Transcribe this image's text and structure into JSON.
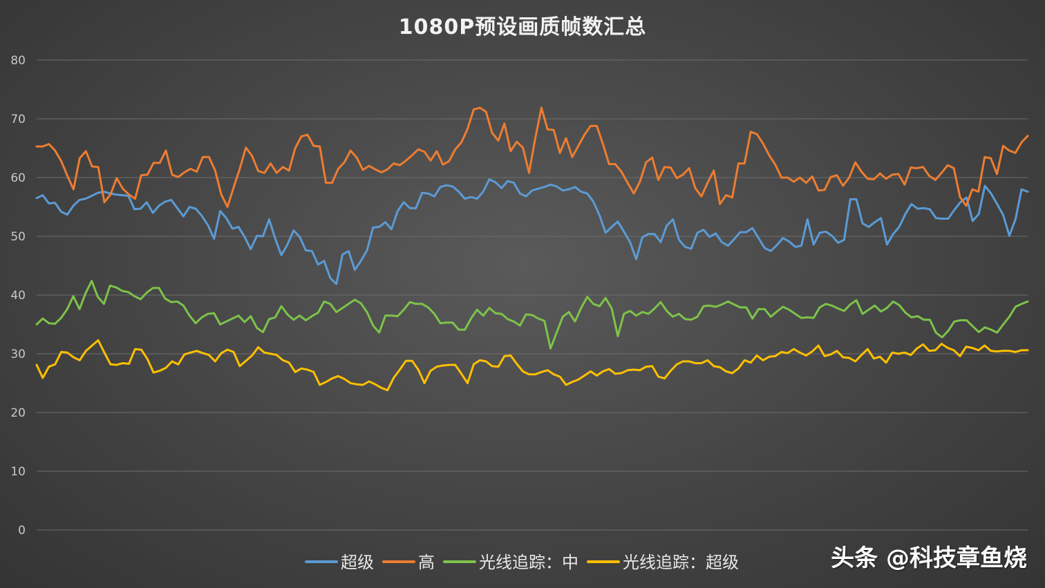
{
  "watermark": "头条 @科技章鱼烧",
  "chart_data": {
    "type": "line",
    "title": "1080P预设画质帧数汇总",
    "ylim": [
      0,
      80
    ],
    "yticks": [
      0,
      10,
      20,
      30,
      40,
      50,
      60,
      70,
      80
    ],
    "grid": true,
    "legend_position": "bottom",
    "series": [
      {
        "name": "超级",
        "color": "#5b9bd5",
        "values": [
          56.5,
          57.0,
          55.6,
          55.7,
          54.2,
          53.7,
          55.2,
          56.2,
          56.4,
          56.9,
          57.4,
          57.6,
          57.3,
          57.1,
          57.0,
          56.9,
          54.6,
          54.7,
          55.8,
          54.0,
          55.2,
          55.9,
          56.2,
          54.8,
          53.4,
          55.0,
          54.7,
          53.5,
          51.9,
          49.6,
          54.3,
          53.1,
          51.3,
          51.6,
          49.9,
          47.8,
          50.1,
          50.0,
          52.9,
          49.6,
          46.8,
          48.6,
          51.0,
          49.9,
          47.6,
          47.5,
          45.2,
          45.8,
          42.9,
          41.9,
          46.9,
          47.5,
          44.3,
          45.8,
          47.6,
          51.5,
          51.6,
          52.4,
          51.2,
          54.3,
          55.8,
          54.8,
          54.8,
          57.4,
          57.3,
          56.8,
          58.4,
          58.7,
          58.5,
          57.6,
          56.4,
          56.7,
          56.4,
          57.6,
          59.7,
          59.2,
          58.2,
          59.4,
          59.1,
          57.3,
          56.8,
          57.8,
          58.1,
          58.4,
          58.8,
          58.5,
          57.8,
          58.0,
          58.4,
          57.6,
          57.3,
          55.9,
          53.6,
          50.6,
          51.6,
          52.5,
          50.8,
          49.0,
          46.1,
          49.8,
          50.4,
          50.4,
          49.0,
          51.8,
          52.9,
          49.4,
          48.2,
          47.9,
          50.6,
          51.1,
          49.9,
          50.5,
          49.0,
          48.4,
          49.5,
          50.7,
          50.7,
          51.4,
          49.7,
          48.0,
          47.5,
          48.5,
          49.7,
          49.1,
          48.2,
          48.4,
          52.9,
          48.6,
          50.6,
          50.8,
          50.1,
          48.9,
          49.4,
          56.3,
          56.3,
          52.2,
          51.6,
          52.4,
          53.1,
          48.6,
          50.4,
          51.6,
          53.8,
          55.5,
          54.7,
          54.8,
          54.6,
          53.1,
          53.0,
          53.0,
          54.5,
          55.8,
          56.6,
          52.6,
          53.8,
          58.6,
          57.3,
          55.5,
          53.6,
          50.1,
          52.9,
          58.0,
          57.6
        ]
      },
      {
        "name": "高",
        "color": "#ed7d31",
        "values": [
          65.3,
          65.3,
          65.7,
          64.6,
          62.8,
          60.3,
          58.0,
          63.3,
          64.5,
          61.9,
          61.8,
          55.8,
          57.1,
          59.9,
          58.1,
          57.1,
          56.4,
          60.4,
          60.5,
          62.5,
          62.5,
          64.6,
          60.5,
          60.1,
          60.9,
          61.5,
          61.0,
          63.5,
          63.5,
          61.2,
          57.1,
          55.0,
          58.3,
          61.5,
          65.1,
          63.7,
          61.1,
          60.8,
          62.4,
          60.8,
          61.8,
          61.2,
          65.0,
          67.0,
          67.3,
          65.4,
          65.3,
          59.1,
          59.1,
          61.5,
          62.6,
          64.6,
          63.4,
          61.3,
          62.0,
          61.4,
          60.9,
          61.4,
          62.4,
          62.1,
          62.9,
          63.8,
          64.8,
          64.4,
          62.9,
          64.5,
          62.2,
          62.8,
          64.8,
          66.0,
          68.3,
          71.6,
          71.9,
          71.2,
          67.6,
          66.3,
          69.2,
          64.5,
          66.1,
          65.1,
          60.8,
          66.7,
          71.9,
          68.2,
          68.1,
          64.2,
          66.7,
          63.5,
          65.4,
          67.3,
          68.8,
          68.8,
          65.7,
          62.3,
          62.3,
          61.0,
          59.1,
          57.3,
          59.3,
          62.6,
          63.4,
          59.6,
          61.8,
          61.7,
          59.9,
          60.5,
          61.6,
          58.2,
          56.8,
          59.1,
          61.2,
          55.5,
          57.0,
          56.6,
          62.4,
          62.4,
          67.8,
          67.4,
          65.8,
          63.8,
          62.2,
          60.0,
          60.0,
          59.3,
          60.0,
          59.1,
          60.2,
          57.8,
          57.9,
          60.1,
          60.4,
          58.6,
          60.0,
          62.6,
          61.0,
          59.8,
          59.7,
          60.7,
          59.8,
          60.5,
          60.6,
          58.8,
          61.7,
          61.6,
          61.8,
          60.3,
          59.6,
          60.8,
          62.1,
          61.6,
          56.7,
          55.2,
          58.0,
          57.6,
          63.5,
          63.3,
          60.6,
          65.4,
          64.6,
          64.2,
          66.0,
          67.1
        ]
      },
      {
        "name": "光线追踪：中",
        "color": "#7dc34a",
        "values": [
          35.0,
          36.0,
          35.2,
          35.1,
          36.1,
          37.6,
          39.8,
          37.6,
          40.3,
          42.4,
          39.7,
          38.5,
          41.6,
          41.3,
          40.7,
          40.5,
          39.8,
          39.3,
          40.4,
          41.2,
          41.2,
          39.4,
          38.8,
          38.9,
          38.2,
          36.5,
          35.2,
          36.2,
          36.8,
          36.9,
          35.0,
          35.5,
          36.0,
          36.5,
          35.4,
          36.4,
          34.4,
          33.7,
          35.9,
          36.2,
          38.1,
          36.7,
          35.8,
          36.5,
          35.7,
          36.4,
          37.0,
          38.9,
          38.5,
          37.1,
          37.8,
          38.5,
          39.2,
          38.6,
          37.1,
          34.8,
          33.6,
          36.5,
          36.5,
          36.4,
          37.5,
          38.8,
          38.5,
          38.5,
          37.9,
          36.8,
          35.2,
          35.3,
          35.3,
          34.1,
          34.1,
          36.0,
          37.5,
          36.5,
          37.8,
          36.9,
          36.8,
          35.9,
          35.5,
          34.8,
          36.7,
          36.6,
          36.0,
          35.6,
          30.9,
          33.6,
          36.3,
          37.1,
          35.5,
          37.8,
          39.7,
          38.5,
          38.1,
          39.5,
          37.7,
          33.0,
          36.8,
          37.3,
          36.5,
          37.1,
          36.8,
          37.7,
          38.8,
          37.3,
          36.3,
          36.8,
          35.9,
          35.8,
          36.3,
          38.1,
          38.2,
          38.0,
          38.4,
          38.9,
          38.4,
          37.9,
          37.9,
          36.0,
          37.6,
          37.6,
          36.3,
          37.2,
          38.0,
          37.5,
          36.8,
          36.1,
          36.2,
          36.1,
          37.9,
          38.5,
          38.2,
          37.7,
          37.3,
          38.4,
          39.1,
          36.8,
          37.5,
          38.2,
          37.2,
          37.8,
          38.9,
          38.3,
          37.0,
          36.2,
          36.4,
          35.8,
          35.8,
          33.6,
          32.8,
          33.9,
          35.5,
          35.7,
          35.7,
          34.7,
          33.7,
          34.5,
          34.1,
          33.6,
          35.0,
          36.3,
          38.0,
          38.5,
          38.9
        ]
      },
      {
        "name": "光线追踪：超级",
        "color": "#ffc000",
        "values": [
          28.1,
          25.9,
          27.8,
          28.2,
          30.3,
          30.2,
          29.4,
          28.9,
          30.5,
          31.4,
          32.3,
          30.2,
          28.2,
          28.1,
          28.4,
          28.3,
          30.8,
          30.7,
          29.1,
          26.8,
          27.1,
          27.6,
          28.7,
          28.2,
          29.9,
          30.2,
          30.5,
          30.1,
          29.8,
          28.7,
          30.1,
          30.7,
          30.3,
          27.9,
          28.8,
          29.7,
          31.1,
          30.2,
          30.0,
          29.8,
          28.9,
          28.5,
          26.9,
          27.5,
          27.3,
          26.9,
          24.7,
          25.2,
          25.8,
          26.2,
          25.7,
          25.0,
          24.8,
          24.7,
          25.3,
          24.8,
          24.2,
          23.8,
          25.9,
          27.3,
          28.8,
          28.8,
          27.3,
          25.0,
          27.1,
          27.8,
          28.0,
          28.1,
          28.1,
          26.6,
          25.0,
          28.2,
          28.9,
          28.7,
          27.9,
          27.8,
          29.6,
          29.7,
          28.3,
          27.0,
          26.5,
          26.5,
          26.9,
          27.2,
          26.5,
          26.1,
          24.7,
          25.2,
          25.6,
          26.3,
          27.0,
          26.3,
          27.0,
          27.4,
          26.6,
          26.7,
          27.2,
          27.3,
          27.2,
          27.8,
          27.9,
          26.1,
          25.8,
          27.1,
          28.2,
          28.7,
          28.7,
          28.4,
          28.4,
          28.9,
          27.9,
          27.7,
          27.0,
          26.7,
          27.5,
          28.9,
          28.5,
          29.7,
          28.9,
          29.5,
          29.6,
          30.3,
          30.1,
          30.8,
          30.2,
          29.7,
          30.4,
          31.4,
          29.6,
          29.9,
          30.5,
          29.4,
          29.3,
          28.7,
          29.8,
          30.8,
          29.2,
          29.5,
          28.5,
          30.2,
          30.0,
          30.2,
          29.8,
          30.9,
          31.6,
          30.5,
          30.6,
          31.7,
          31.0,
          30.6,
          29.6,
          31.2,
          31.0,
          30.6,
          31.4,
          30.5,
          30.4,
          30.5,
          30.5,
          30.3,
          30.6,
          30.6
        ]
      }
    ]
  }
}
